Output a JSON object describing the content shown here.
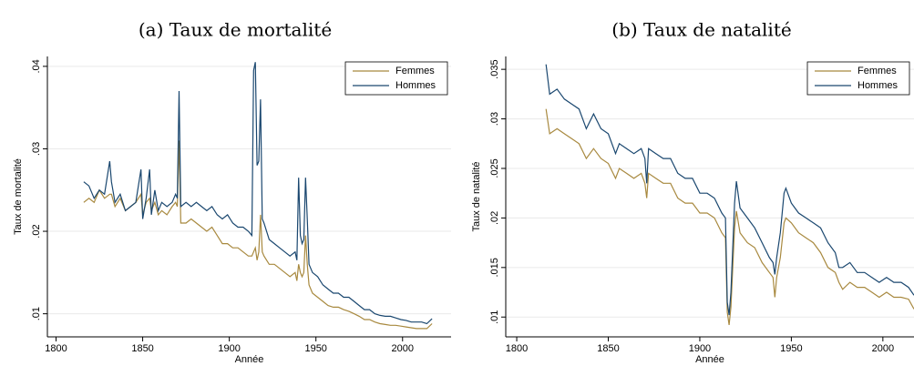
{
  "chart_data": [
    {
      "type": "line",
      "title": "(a) Taux de mortalité",
      "xlabel": "Année",
      "ylabel": "Taux de mortalité",
      "x": [
        1816,
        1819,
        1822,
        1825,
        1828,
        1831,
        1832,
        1834,
        1837,
        1840,
        1843,
        1846,
        1849,
        1850,
        1852,
        1854,
        1855,
        1857,
        1859,
        1861,
        1864,
        1867,
        1869,
        1870,
        1871,
        1872,
        1875,
        1878,
        1881,
        1884,
        1887,
        1890,
        1893,
        1896,
        1899,
        1902,
        1905,
        1908,
        1911,
        1913,
        1914,
        1915,
        1916,
        1917,
        1918,
        1919,
        1920,
        1923,
        1926,
        1929,
        1932,
        1935,
        1938,
        1939,
        1940,
        1941,
        1942,
        1943,
        1944,
        1945,
        1946,
        1948,
        1951,
        1954,
        1957,
        1960,
        1963,
        1966,
        1969,
        1972,
        1975,
        1978,
        1981,
        1984,
        1987,
        1990,
        1993,
        1996,
        1999,
        2002,
        2005,
        2008,
        2011,
        2014,
        2017
      ],
      "series": [
        {
          "name": "Femmes",
          "color": "#a8893f",
          "values": [
            0.0235,
            0.024,
            0.0235,
            0.025,
            0.024,
            0.0245,
            0.0245,
            0.023,
            0.024,
            0.0225,
            0.023,
            0.0235,
            0.0245,
            0.022,
            0.0235,
            0.024,
            0.0225,
            0.0235,
            0.022,
            0.0225,
            0.022,
            0.023,
            0.0235,
            0.023,
            0.031,
            0.021,
            0.021,
            0.0215,
            0.021,
            0.0205,
            0.02,
            0.0205,
            0.0195,
            0.0185,
            0.0185,
            0.018,
            0.018,
            0.0175,
            0.017,
            0.017,
            0.0175,
            0.018,
            0.0165,
            0.0175,
            0.022,
            0.0175,
            0.017,
            0.016,
            0.016,
            0.0155,
            0.015,
            0.0145,
            0.015,
            0.014,
            0.016,
            0.015,
            0.0145,
            0.015,
            0.0195,
            0.016,
            0.0135,
            0.0125,
            0.012,
            0.0115,
            0.011,
            0.0108,
            0.0108,
            0.0105,
            0.0103,
            0.01,
            0.0097,
            0.0093,
            0.0093,
            0.009,
            0.0088,
            0.0087,
            0.0086,
            0.0086,
            0.0085,
            0.0084,
            0.0083,
            0.0082,
            0.0082,
            0.0082,
            0.0088
          ]
        },
        {
          "name": "Hommes",
          "color": "#1a476f",
          "values": [
            0.026,
            0.0255,
            0.024,
            0.025,
            0.0245,
            0.0285,
            0.026,
            0.0235,
            0.0245,
            0.0225,
            0.023,
            0.0235,
            0.0275,
            0.0215,
            0.024,
            0.0275,
            0.022,
            0.025,
            0.0225,
            0.0235,
            0.023,
            0.0235,
            0.0245,
            0.024,
            0.037,
            0.023,
            0.0235,
            0.023,
            0.0235,
            0.023,
            0.0225,
            0.023,
            0.022,
            0.0215,
            0.022,
            0.021,
            0.0205,
            0.0205,
            0.02,
            0.0195,
            0.0395,
            0.0405,
            0.028,
            0.0285,
            0.036,
            0.0215,
            0.021,
            0.019,
            0.0185,
            0.018,
            0.0175,
            0.017,
            0.0175,
            0.0165,
            0.0265,
            0.0195,
            0.0185,
            0.019,
            0.0265,
            0.0215,
            0.016,
            0.015,
            0.0145,
            0.0135,
            0.013,
            0.0125,
            0.0125,
            0.012,
            0.012,
            0.0115,
            0.011,
            0.0105,
            0.0105,
            0.01,
            0.0098,
            0.0097,
            0.0097,
            0.0095,
            0.0093,
            0.0092,
            0.009,
            0.009,
            0.009,
            0.0088,
            0.0094
          ]
        }
      ],
      "xlim": [
        1795,
        2028
      ],
      "xticks": [
        1800,
        1850,
        1900,
        1950,
        2000
      ],
      "ylim": [
        0.0072,
        0.0412
      ],
      "yticks": [
        {
          "value": 0.01,
          "label": ".01"
        },
        {
          "value": 0.02,
          "label": ".02"
        },
        {
          "value": 0.03,
          "label": ".03"
        },
        {
          "value": 0.04,
          "label": ".04"
        }
      ],
      "grid": true,
      "legend": "top-right"
    },
    {
      "type": "line",
      "title": "(b) Taux de natalité",
      "xlabel": "Année",
      "ylabel": "Taux de natalité",
      "x": [
        1816,
        1818,
        1822,
        1826,
        1830,
        1834,
        1838,
        1842,
        1846,
        1850,
        1854,
        1856,
        1860,
        1864,
        1868,
        1870,
        1871,
        1872,
        1876,
        1880,
        1884,
        1888,
        1892,
        1896,
        1900,
        1904,
        1908,
        1912,
        1914,
        1915,
        1916,
        1917,
        1919,
        1920,
        1922,
        1926,
        1930,
        1934,
        1938,
        1940,
        1941,
        1942,
        1944,
        1946,
        1947,
        1950,
        1954,
        1958,
        1962,
        1966,
        1970,
        1974,
        1976,
        1978,
        1982,
        1986,
        1990,
        1994,
        1998,
        2002,
        2006,
        2010,
        2014,
        2017
      ],
      "series": [
        {
          "name": "Femmes",
          "color": "#a8893f",
          "values": [
            0.031,
            0.0285,
            0.029,
            0.0285,
            0.028,
            0.0275,
            0.026,
            0.027,
            0.026,
            0.0255,
            0.024,
            0.025,
            0.0245,
            0.024,
            0.0245,
            0.0235,
            0.022,
            0.0245,
            0.024,
            0.0235,
            0.0235,
            0.022,
            0.0215,
            0.0215,
            0.0205,
            0.0205,
            0.02,
            0.0185,
            0.018,
            0.0105,
            0.0092,
            0.011,
            0.019,
            0.0207,
            0.0185,
            0.0175,
            0.017,
            0.0155,
            0.0145,
            0.014,
            0.012,
            0.014,
            0.016,
            0.0195,
            0.02,
            0.0195,
            0.0185,
            0.018,
            0.0175,
            0.0165,
            0.015,
            0.0145,
            0.0135,
            0.0128,
            0.0135,
            0.013,
            0.013,
            0.0125,
            0.012,
            0.0125,
            0.012,
            0.012,
            0.0118,
            0.0108
          ]
        },
        {
          "name": "Hommes",
          "color": "#1a476f",
          "values": [
            0.0355,
            0.0325,
            0.033,
            0.032,
            0.0315,
            0.031,
            0.029,
            0.0305,
            0.029,
            0.0285,
            0.0265,
            0.0275,
            0.027,
            0.0265,
            0.027,
            0.026,
            0.0235,
            0.027,
            0.0265,
            0.026,
            0.026,
            0.0245,
            0.024,
            0.024,
            0.0225,
            0.0225,
            0.022,
            0.0205,
            0.02,
            0.0115,
            0.0102,
            0.0125,
            0.0215,
            0.0237,
            0.021,
            0.02,
            0.019,
            0.0175,
            0.016,
            0.0155,
            0.0143,
            0.016,
            0.0185,
            0.0225,
            0.023,
            0.0215,
            0.0205,
            0.02,
            0.0195,
            0.019,
            0.0175,
            0.0165,
            0.015,
            0.015,
            0.0155,
            0.0145,
            0.0145,
            0.014,
            0.0135,
            0.014,
            0.0135,
            0.0135,
            0.013,
            0.0122
          ]
        }
      ],
      "xlim": [
        1794,
        2017
      ],
      "xticks": [
        1800,
        1850,
        1900,
        1950,
        2000
      ],
      "ylim": [
        0.008,
        0.0363
      ],
      "yticks": [
        {
          "value": 0.01,
          "label": ".01"
        },
        {
          "value": 0.015,
          "label": ".015"
        },
        {
          "value": 0.02,
          "label": ".02"
        },
        {
          "value": 0.025,
          "label": ".025"
        },
        {
          "value": 0.03,
          "label": ".03"
        },
        {
          "value": 0.035,
          "label": ".035"
        }
      ],
      "grid": true,
      "legend": "top-right"
    }
  ]
}
